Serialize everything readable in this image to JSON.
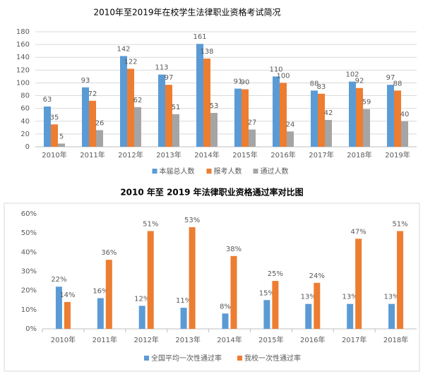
{
  "chart_data": [
    {
      "type": "bar",
      "title": "2010年至2019年在校学生法律职业资格考试简况",
      "categories": [
        "2010年",
        "2011年",
        "2012年",
        "2013年",
        "2014年",
        "2015年",
        "2016年",
        "2017年",
        "2018年",
        "2019年"
      ],
      "series": [
        {
          "name": "本届总人数",
          "color": "#5b9bd5",
          "values": [
            63,
            93,
            142,
            113,
            161,
            91,
            110,
            88,
            102,
            97
          ]
        },
        {
          "name": "报考人数",
          "color": "#ed7d31",
          "values": [
            35,
            72,
            122,
            97,
            138,
            90,
            100,
            83,
            92,
            88
          ]
        },
        {
          "name": "通过人数",
          "color": "#a5a5a5",
          "values": [
            5,
            26,
            62,
            51,
            53,
            27,
            24,
            42,
            59,
            40
          ]
        }
      ],
      "ylim": [
        0,
        180
      ],
      "yticks": [
        0,
        20,
        40,
        60,
        80,
        100,
        120,
        140,
        160,
        180
      ],
      "grid": true,
      "legend": "bottom"
    },
    {
      "type": "bar",
      "title": "2010 年至 2019 年法律职业资格通过率对比图",
      "categories": [
        "2010年",
        "2011年",
        "2012年",
        "2013年",
        "2014年",
        "2015年",
        "2016年",
        "2017年",
        "2018年"
      ],
      "series": [
        {
          "name": "全国平均一次性通过率",
          "color": "#5b9bd5",
          "values": [
            22,
            16,
            12,
            11,
            8,
            15,
            13,
            13,
            13
          ],
          "value_labels": [
            "22%",
            "16%",
            "12%",
            "11%",
            "8%",
            "15%",
            "13%",
            "13%",
            "13%"
          ]
        },
        {
          "name": "我校一次性通过率",
          "color": "#ed7d31",
          "values": [
            14,
            36,
            51,
            53,
            38,
            25,
            24,
            47,
            51
          ],
          "value_labels": [
            "14%",
            "36%",
            "51%",
            "53%",
            "38%",
            "25%",
            "24%",
            "47%",
            "51%"
          ]
        }
      ],
      "ylim": [
        0,
        60
      ],
      "yticks": [
        {
          "value": 0,
          "label": "0%"
        },
        {
          "value": 10,
          "label": "10%"
        },
        {
          "value": 20,
          "label": "20%"
        },
        {
          "value": 30,
          "label": "30%"
        },
        {
          "value": 40,
          "label": "40%"
        },
        {
          "value": 50,
          "label": "50%"
        },
        {
          "value": 60,
          "label": "60%"
        }
      ],
      "grid": false,
      "legend": "bottom"
    }
  ]
}
